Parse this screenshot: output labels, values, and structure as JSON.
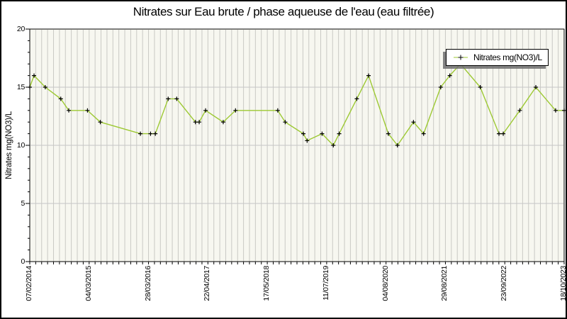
{
  "chart_data": {
    "type": "line",
    "title": "Nitrates sur Eau brute / phase aqueuse de l'eau (eau filtrée)",
    "ylabel": "Nitrates mg(NO3)/L",
    "xlabel": "",
    "legend": {
      "label": "Nitrates mg(NO3)/L",
      "position": "top-right"
    },
    "ylim": [
      0,
      20
    ],
    "yticks": [
      0,
      5,
      10,
      15,
      20
    ],
    "y_minor_step": 1,
    "grid": {
      "horizontal_majors": [
        5,
        10,
        15
      ],
      "vertical_minor_count": 90,
      "stripes": true
    },
    "xtick_labels": [
      "07/02/2014",
      "04/03/2015",
      "28/03/2016",
      "22/04/2017",
      "17/05/2018",
      "11/07/2019",
      "04/08/2020",
      "29/08/2021",
      "23/09/2022",
      "18/10/2023"
    ],
    "series": [
      {
        "name": "Nitrates mg(NO3)/L",
        "color": "#9dc933",
        "marker": "plus",
        "marker_color": "#000000",
        "points": [
          [
            0.0,
            15
          ],
          [
            0.008,
            16
          ],
          [
            0.029,
            15
          ],
          [
            0.058,
            14
          ],
          [
            0.073,
            13
          ],
          [
            0.108,
            13
          ],
          [
            0.132,
            12
          ],
          [
            0.207,
            11
          ],
          [
            0.226,
            11
          ],
          [
            0.235,
            11
          ],
          [
            0.259,
            14
          ],
          [
            0.275,
            14
          ],
          [
            0.31,
            12
          ],
          [
            0.317,
            12
          ],
          [
            0.329,
            13
          ],
          [
            0.362,
            12
          ],
          [
            0.385,
            13
          ],
          [
            0.464,
            13
          ],
          [
            0.478,
            12
          ],
          [
            0.512,
            11
          ],
          [
            0.519,
            10.4
          ],
          [
            0.547,
            11
          ],
          [
            0.568,
            10
          ],
          [
            0.579,
            11
          ],
          [
            0.612,
            14
          ],
          [
            0.634,
            16
          ],
          [
            0.671,
            11
          ],
          [
            0.688,
            10
          ],
          [
            0.718,
            12
          ],
          [
            0.737,
            11
          ],
          [
            0.769,
            15
          ],
          [
            0.786,
            16
          ],
          [
            0.806,
            17
          ],
          [
            0.843,
            15
          ],
          [
            0.878,
            11
          ],
          [
            0.886,
            11
          ],
          [
            0.917,
            13
          ],
          [
            0.947,
            15
          ],
          [
            0.984,
            13
          ],
          [
            1.0,
            13
          ]
        ]
      }
    ]
  },
  "colors": {
    "background": "#ffffff",
    "plot_background": "#f7f7f0",
    "stripe_grid": "#c9c9c4",
    "major_grid": "#c6c6c6",
    "axis": "#000000",
    "text": "#000000",
    "series_line": "#9dc933",
    "marker": "#000000",
    "legend_background": "#ffffff",
    "legend_border": "#000000",
    "legend_shadow": "#6e6e6e"
  }
}
